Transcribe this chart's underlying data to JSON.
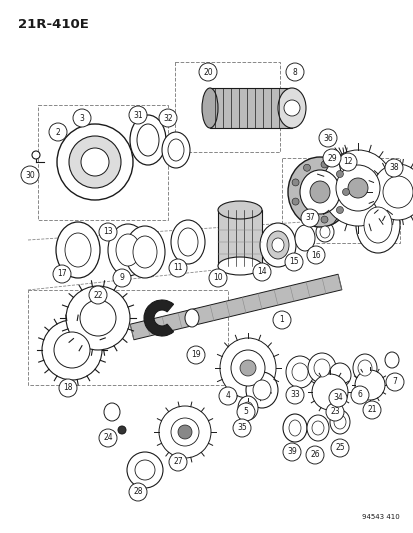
{
  "title": "21R-410E",
  "footer": "94543 410",
  "bg_color": "#ffffff",
  "line_color": "#1a1a1a",
  "fig_width": 4.14,
  "fig_height": 5.33,
  "dpi": 100,
  "gray_light": "#cccccc",
  "gray_mid": "#999999",
  "gray_dark": "#555555"
}
